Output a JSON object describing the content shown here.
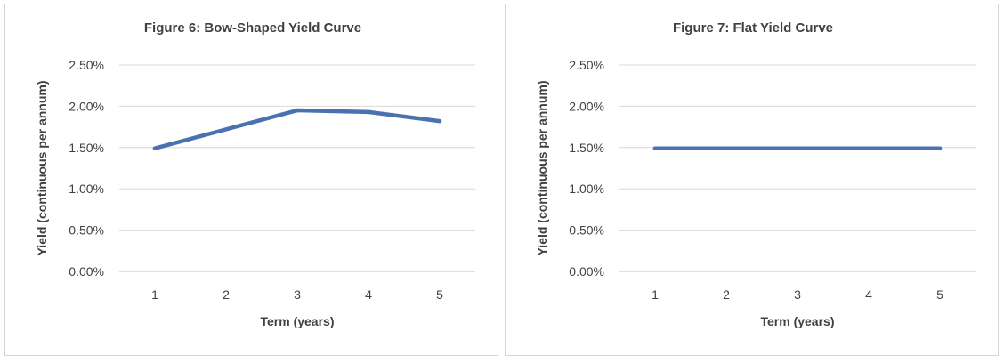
{
  "chart_data": [
    {
      "type": "line",
      "title": "Figure 6: Bow-Shaped Yield Curve",
      "xlabel": "Term (years)",
      "ylabel": "Yield (continuous per annum)",
      "categories": [
        "1",
        "2",
        "3",
        "4",
        "5"
      ],
      "y_ticks": [
        "0.00%",
        "0.50%",
        "1.00%",
        "1.50%",
        "2.00%",
        "2.50%"
      ],
      "ylim": [
        0,
        0.025
      ],
      "grid": true,
      "series": [
        {
          "values": [
            0.0149,
            0.0172,
            0.0195,
            0.0193,
            0.0182
          ],
          "color": "#4a72b0"
        }
      ]
    },
    {
      "type": "line",
      "title": "Figure 7: Flat Yield Curve",
      "xlabel": "Term (years)",
      "ylabel": "Yield (continuous per annum)",
      "categories": [
        "1",
        "2",
        "3",
        "4",
        "5"
      ],
      "y_ticks": [
        "0.00%",
        "0.50%",
        "1.00%",
        "1.50%",
        "2.00%",
        "2.50%"
      ],
      "ylim": [
        0,
        0.025
      ],
      "grid": true,
      "series": [
        {
          "values": [
            0.0149,
            0.0149,
            0.0149,
            0.0149,
            0.0149
          ],
          "color": "#4a72b0"
        }
      ]
    }
  ]
}
